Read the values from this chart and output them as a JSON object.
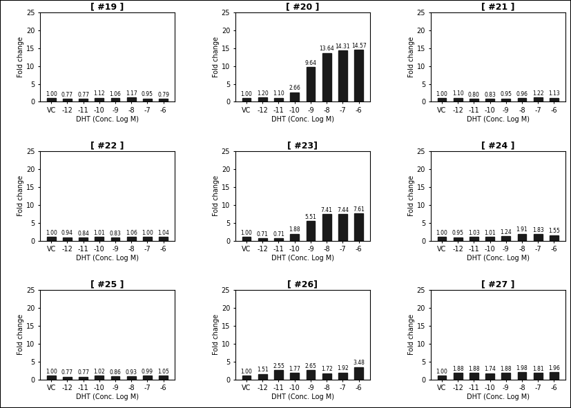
{
  "panels": [
    {
      "title": "[ #19 ]",
      "values": [
        1.0,
        0.77,
        0.77,
        1.12,
        1.06,
        1.17,
        0.95,
        0.79
      ],
      "labels": [
        "VC",
        "-12",
        "-11",
        "-10",
        "-9",
        "-8",
        "-7",
        "-6"
      ]
    },
    {
      "title": "[ #20 ]",
      "values": [
        1.0,
        1.2,
        1.1,
        2.66,
        9.64,
        13.64,
        14.31,
        14.57
      ],
      "labels": [
        "VC",
        "-12",
        "-11",
        "-10",
        "-9",
        "-8",
        "-7",
        "-6"
      ]
    },
    {
      "title": "[ #21 ]",
      "values": [
        1.0,
        1.1,
        0.8,
        0.83,
        0.95,
        0.96,
        1.22,
        1.13
      ],
      "labels": [
        "VC",
        "-12",
        "-11",
        "-10",
        "-9",
        "-8",
        "-7",
        "-6"
      ]
    },
    {
      "title": "[ #22 ]",
      "values": [
        1.0,
        0.94,
        0.84,
        1.01,
        0.83,
        1.06,
        1.0,
        1.04
      ],
      "labels": [
        "VC",
        "-12",
        "-11",
        "-10",
        "-9",
        "-8",
        "-7",
        "-6"
      ]
    },
    {
      "title": "[ #23]",
      "values": [
        1.0,
        0.71,
        0.71,
        1.88,
        5.51,
        7.41,
        7.44,
        7.61
      ],
      "labels": [
        "VC",
        "-12",
        "-11",
        "-10",
        "-9",
        "-8",
        "-7",
        "-6"
      ]
    },
    {
      "title": "[ #24 ]",
      "values": [
        1.0,
        0.95,
        1.03,
        1.01,
        1.24,
        1.91,
        1.83,
        1.55
      ],
      "labels": [
        "VC",
        "-12",
        "-11",
        "-10",
        "-9",
        "-8",
        "-7",
        "-6"
      ]
    },
    {
      "title": "[ #25 ]",
      "values": [
        1.0,
        0.77,
        0.77,
        1.02,
        0.86,
        0.93,
        0.99,
        1.05
      ],
      "labels": [
        "VC",
        "-12",
        "-11",
        "-10",
        "-9",
        "-8",
        "-7",
        "-6"
      ]
    },
    {
      "title": "[ #26]",
      "values": [
        1.0,
        1.51,
        2.55,
        1.77,
        2.65,
        1.72,
        1.92,
        3.48
      ],
      "labels": [
        "VC",
        "-12",
        "-11",
        "-10",
        "-9",
        "-8",
        "-7",
        "-6"
      ]
    },
    {
      "title": "[ #27 ]",
      "values": [
        1.0,
        1.88,
        1.88,
        1.74,
        1.88,
        1.98,
        1.81,
        1.96
      ],
      "labels": [
        "VC",
        "-12",
        "-11",
        "-10",
        "-9",
        "-8",
        "-7",
        "-6"
      ]
    }
  ],
  "bar_color": "#1a1a1a",
  "bar_width": 0.55,
  "ylim": [
    0,
    25
  ],
  "yticks": [
    0,
    5,
    10,
    15,
    20,
    25
  ],
  "ylabel": "Fold change",
  "xlabel": "DHT (Conc. Log M)",
  "value_fontsize": 5.5,
  "title_fontsize": 9,
  "axis_label_fontsize": 7,
  "tick_fontsize": 7
}
